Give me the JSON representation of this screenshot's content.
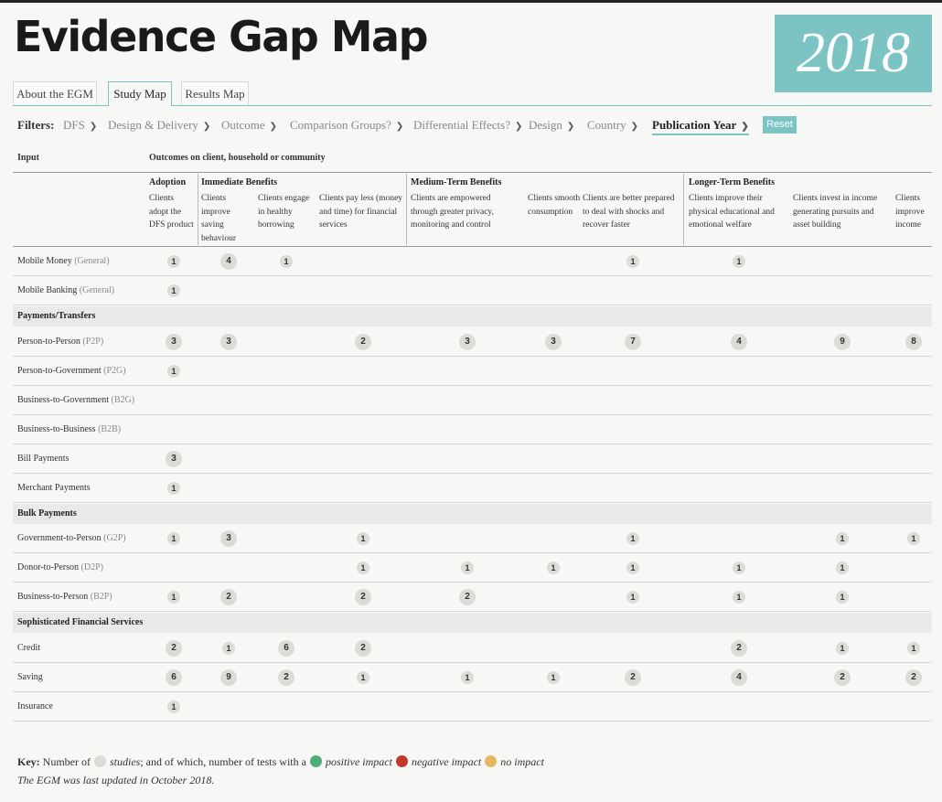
{
  "app_title": "Evidence Gap Map",
  "year_badge": "2018",
  "tabs": [
    "About the EGM",
    "Study Map",
    "Results Map"
  ],
  "active_tab": "Study Map",
  "filters": {
    "label": "Filters:",
    "items": [
      "DFS",
      "Design & Delivery",
      "Outcome",
      "Comparison Groups?",
      "Differential Effects?",
      "Design",
      "Country",
      "Publication Year"
    ],
    "active": "Publication Year",
    "reset_label": "Reset"
  },
  "table": {
    "input_header": "Input",
    "outcomes_header": "Outcomes on client, household or community",
    "groups": [
      "Adoption",
      "Immediate Benefits",
      "Medium-Term Benefits",
      "Longer-Term Benefits"
    ],
    "columns": [
      "Clients adopt the DFS product",
      "Clients improve saving behaviour",
      "Clients engage in healthy borrowing",
      "Clients pay less (money and time) for financial services",
      "Clients are empowered through greater privacy, monitoring and control",
      "Clients smooth consumption",
      "Clients are better prepared to deal with shocks and recover faster",
      "Clients improve their physical educational and emotional welfare",
      "Clients invest in income generating pursuits and asset building",
      "Clients improve income"
    ],
    "rows": [
      {
        "label": "Mobile Money",
        "sub": "(General)",
        "cells": [
          1,
          4,
          1,
          null,
          null,
          null,
          1,
          1,
          null,
          null
        ]
      },
      {
        "label": "Mobile Banking",
        "sub": "(General)",
        "cells": [
          1,
          null,
          null,
          null,
          null,
          null,
          null,
          null,
          null,
          null
        ]
      },
      {
        "section": "Payments/Transfers"
      },
      {
        "label": "Person-to-Person",
        "sub": "(P2P)",
        "cells": [
          3,
          3,
          null,
          2,
          3,
          3,
          7,
          4,
          9,
          8
        ]
      },
      {
        "label": "Person-to-Government",
        "sub": "(P2G)",
        "cells": [
          1,
          null,
          null,
          null,
          null,
          null,
          null,
          null,
          null,
          null
        ]
      },
      {
        "label": "Business-to-Government",
        "sub": "(B2G)",
        "cells": [
          null,
          null,
          null,
          null,
          null,
          null,
          null,
          null,
          null,
          null
        ]
      },
      {
        "label": "Business-to-Business",
        "sub": "(B2B)",
        "cells": [
          null,
          null,
          null,
          null,
          null,
          null,
          null,
          null,
          null,
          null
        ]
      },
      {
        "label": "Bill Payments",
        "sub": "",
        "cells": [
          3,
          null,
          null,
          null,
          null,
          null,
          null,
          null,
          null,
          null
        ]
      },
      {
        "label": "Merchant Payments",
        "sub": "",
        "cells": [
          1,
          null,
          null,
          null,
          null,
          null,
          null,
          null,
          null,
          null
        ]
      },
      {
        "section": "Bulk Payments"
      },
      {
        "label": "Government-to-Person",
        "sub": "(G2P)",
        "cells": [
          1,
          3,
          null,
          1,
          null,
          null,
          1,
          null,
          1,
          1
        ]
      },
      {
        "label": "Donor-to-Person",
        "sub": "(D2P)",
        "cells": [
          null,
          null,
          null,
          1,
          1,
          1,
          1,
          1,
          1,
          null
        ]
      },
      {
        "label": "Business-to-Person",
        "sub": "(B2P)",
        "cells": [
          1,
          2,
          null,
          2,
          2,
          null,
          1,
          1,
          1,
          null
        ]
      },
      {
        "section": "Sophisticated Financial Services"
      },
      {
        "label": "Credit",
        "sub": "",
        "cells": [
          2,
          1,
          6,
          2,
          null,
          null,
          null,
          2,
          1,
          1
        ]
      },
      {
        "label": "Saving",
        "sub": "",
        "cells": [
          6,
          9,
          2,
          1,
          1,
          1,
          2,
          4,
          2,
          2
        ]
      },
      {
        "label": "Insurance",
        "sub": "",
        "cells": [
          1,
          null,
          null,
          null,
          null,
          null,
          null,
          null,
          null,
          null
        ]
      }
    ]
  },
  "key": {
    "label": "Key:",
    "text1": "Number of",
    "studies": "studies",
    "text2": "; and of which, number of tests with a",
    "positive": "positive impact",
    "negative": "negative impact",
    "none": "no impact",
    "colors": {
      "studies": "#dcdcd6",
      "positive": "#4caf7a",
      "negative": "#c0392b",
      "none": "#e8b860"
    }
  },
  "updated": "The EGM was last updated in October 2018."
}
